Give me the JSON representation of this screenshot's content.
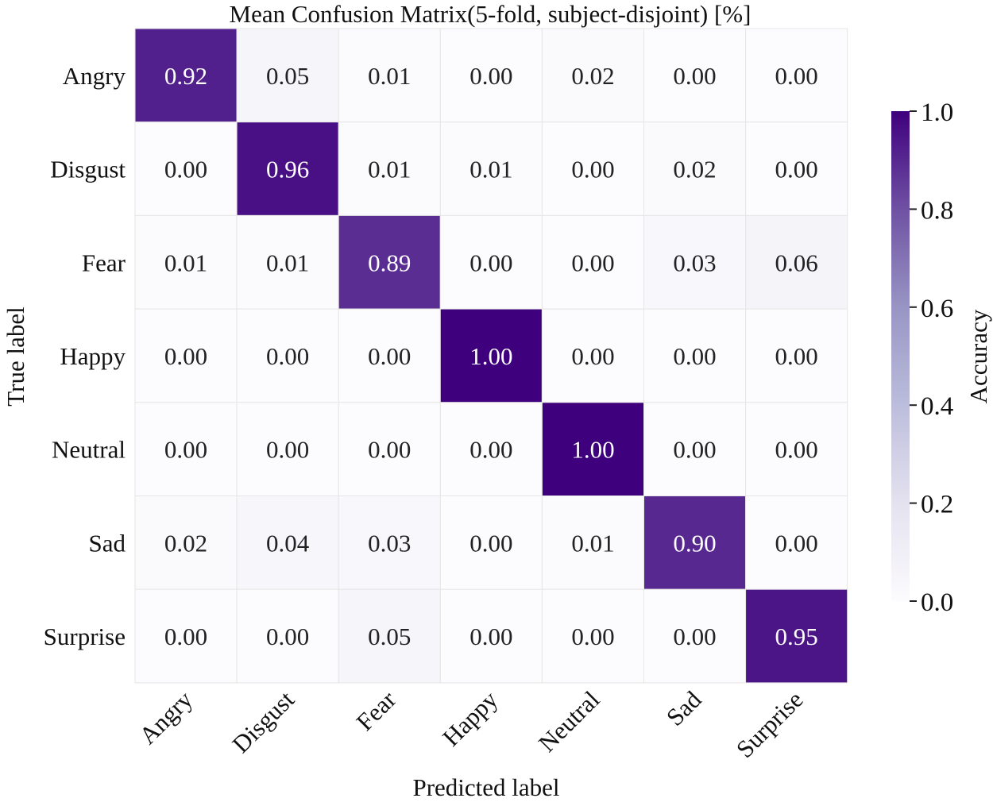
{
  "chart_data": {
    "type": "heatmap",
    "title": "Mean Confusion Matrix(5-fold, subject-disjoint) [%]",
    "xlabel": "Predicted label",
    "ylabel": "True label",
    "x_categories": [
      "Angry",
      "Disgust",
      "Fear",
      "Happy",
      "Neutral",
      "Sad",
      "Surprise"
    ],
    "y_categories": [
      "Angry",
      "Disgust",
      "Fear",
      "Happy",
      "Neutral",
      "Sad",
      "Surprise"
    ],
    "values": [
      [
        0.92,
        0.05,
        0.01,
        0.0,
        0.02,
        0.0,
        0.0
      ],
      [
        0.0,
        0.96,
        0.01,
        0.01,
        0.0,
        0.02,
        0.0
      ],
      [
        0.01,
        0.01,
        0.89,
        0.0,
        0.0,
        0.03,
        0.06
      ],
      [
        0.0,
        0.0,
        0.0,
        1.0,
        0.0,
        0.0,
        0.0
      ],
      [
        0.0,
        0.0,
        0.0,
        0.0,
        1.0,
        0.0,
        0.0
      ],
      [
        0.02,
        0.04,
        0.03,
        0.0,
        0.01,
        0.9,
        0.0
      ],
      [
        0.0,
        0.0,
        0.05,
        0.0,
        0.0,
        0.0,
        0.95
      ]
    ],
    "value_format": "2 decimals",
    "colorbar": {
      "label": "Accuracy",
      "range": [
        0.0,
        1.0
      ],
      "ticks": [
        "0.0",
        "0.2",
        "0.4",
        "0.6",
        "0.8",
        "1.0"
      ],
      "colormap": "Purples"
    },
    "colors": {
      "low": "#fcfbfd",
      "high": "#3f007d",
      "text_dark": "#222222",
      "text_light": "#ffffff",
      "grid": "#e6e6e6"
    }
  }
}
